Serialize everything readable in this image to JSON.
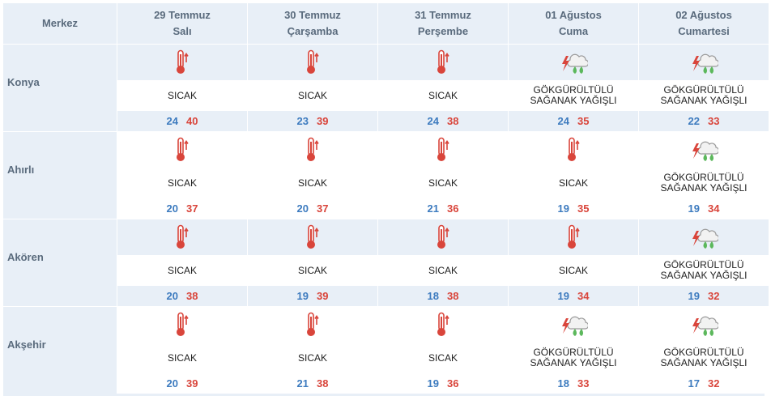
{
  "header": {
    "merkez": "Merkez",
    "days": [
      {
        "date": "29 Temmuz",
        "weekday": "Salı"
      },
      {
        "date": "30 Temmuz",
        "weekday": "Çarşamba"
      },
      {
        "date": "31 Temmuz",
        "weekday": "Perşembe"
      },
      {
        "date": "01 Ağustos",
        "weekday": "Cuma"
      },
      {
        "date": "02 Ağustos",
        "weekday": "Cumartesi"
      }
    ]
  },
  "cities": [
    {
      "name": "Konya",
      "forecast": [
        {
          "icon": "thermometer-hot-icon",
          "cond": [
            "SICAK"
          ],
          "min": "24",
          "max": "40"
        },
        {
          "icon": "thermometer-hot-icon",
          "cond": [
            "SICAK"
          ],
          "min": "23",
          "max": "39"
        },
        {
          "icon": "thermometer-hot-icon",
          "cond": [
            "SICAK"
          ],
          "min": "24",
          "max": "38"
        },
        {
          "icon": "thunderstorm-rain-icon",
          "cond": [
            "GÖKGÜRÜLTÜLÜ",
            "SAĞANAK YAĞIŞLI"
          ],
          "min": "24",
          "max": "35"
        },
        {
          "icon": "thunderstorm-rain-icon",
          "cond": [
            "GÖKGÜRÜLTÜLÜ",
            "SAĞANAK YAĞIŞLI"
          ],
          "min": "22",
          "max": "33"
        }
      ]
    },
    {
      "name": "Ahırlı",
      "forecast": [
        {
          "icon": "thermometer-hot-icon",
          "cond": [
            "SICAK"
          ],
          "min": "20",
          "max": "37"
        },
        {
          "icon": "thermometer-hot-icon",
          "cond": [
            "SICAK"
          ],
          "min": "20",
          "max": "37"
        },
        {
          "icon": "thermometer-hot-icon",
          "cond": [
            "SICAK"
          ],
          "min": "21",
          "max": "36"
        },
        {
          "icon": "thermometer-hot-icon",
          "cond": [
            "SICAK"
          ],
          "min": "19",
          "max": "35"
        },
        {
          "icon": "thunderstorm-rain-icon",
          "cond": [
            "GÖKGÜRÜLTÜLÜ",
            "SAĞANAK YAĞIŞLI"
          ],
          "min": "19",
          "max": "34"
        }
      ]
    },
    {
      "name": "Akören",
      "forecast": [
        {
          "icon": "thermometer-hot-icon",
          "cond": [
            "SICAK"
          ],
          "min": "20",
          "max": "38"
        },
        {
          "icon": "thermometer-hot-icon",
          "cond": [
            "SICAK"
          ],
          "min": "19",
          "max": "39"
        },
        {
          "icon": "thermometer-hot-icon",
          "cond": [
            "SICAK"
          ],
          "min": "18",
          "max": "38"
        },
        {
          "icon": "thermometer-hot-icon",
          "cond": [
            "SICAK"
          ],
          "min": "19",
          "max": "34"
        },
        {
          "icon": "thunderstorm-rain-icon",
          "cond": [
            "GÖKGÜRÜLTÜLÜ",
            "SAĞANAK YAĞIŞLI"
          ],
          "min": "19",
          "max": "32"
        }
      ]
    },
    {
      "name": "Akşehir",
      "forecast": [
        {
          "icon": "thermometer-hot-icon",
          "cond": [
            "SICAK"
          ],
          "min": "20",
          "max": "39"
        },
        {
          "icon": "thermometer-hot-icon",
          "cond": [
            "SICAK"
          ],
          "min": "21",
          "max": "38"
        },
        {
          "icon": "thermometer-hot-icon",
          "cond": [
            "SICAK"
          ],
          "min": "19",
          "max": "36"
        },
        {
          "icon": "thunderstorm-rain-icon",
          "cond": [
            "GÖKGÜRÜLTÜLÜ",
            "SAĞANAK YAĞIŞLI"
          ],
          "min": "18",
          "max": "33"
        },
        {
          "icon": "thunderstorm-rain-icon",
          "cond": [
            "GÖKGÜRÜLTÜLÜ",
            "SAĞANAK YAĞIŞLI"
          ],
          "min": "17",
          "max": "32"
        }
      ]
    }
  ],
  "colors": {
    "header_bg": "#e8eff7",
    "min_temp": "#3d7bbf",
    "max_temp": "#d9453b"
  }
}
